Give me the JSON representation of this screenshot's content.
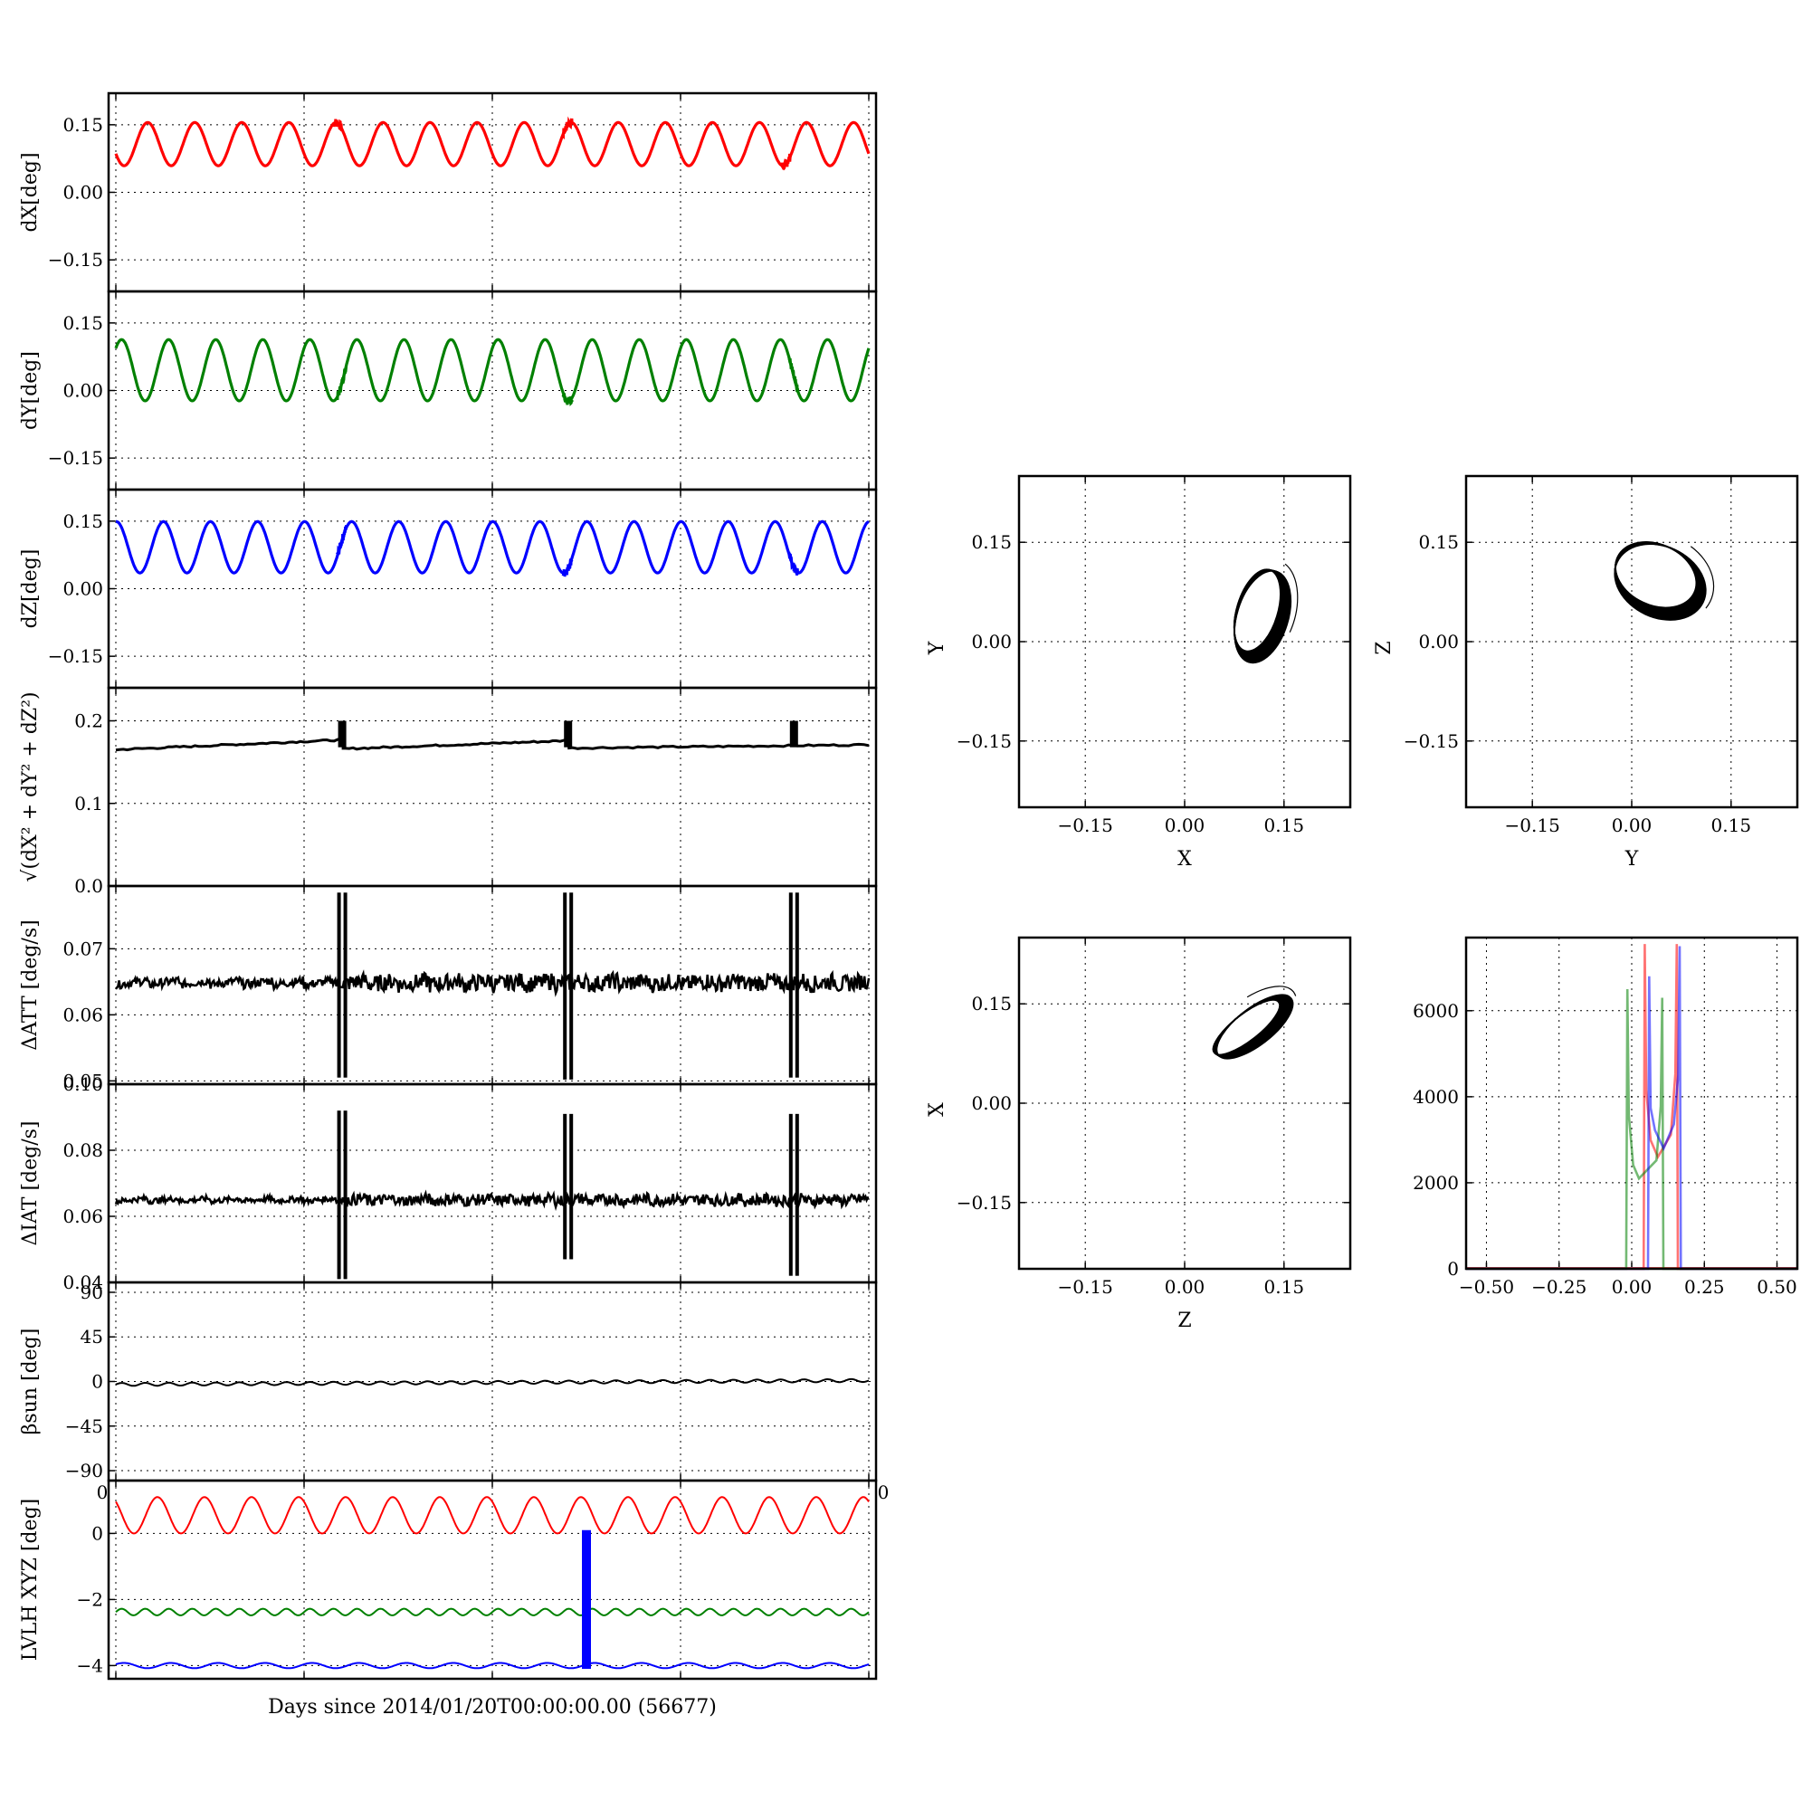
{
  "xlabel": "Days since 2014/01/20T00:00:00.00 (56677)",
  "colors": {
    "x": "#ff0000",
    "y": "#008000",
    "z": "#0000ff",
    "k": "#000000"
  },
  "left_tick_stub_left": "0",
  "left_tick_stub_right": "0",
  "chart_data": [
    {
      "id": "dX",
      "type": "line",
      "ylabel": "dX[deg]",
      "ylim": [
        -0.22,
        0.22
      ],
      "yticks": [
        0.15,
        0.0,
        -0.15
      ],
      "ytick_labels": [
        "0.15",
        "0.00",
        "−0.15"
      ],
      "series": [
        {
          "color": "#ff0000",
          "mean": 0.107,
          "amplitude": 0.048,
          "cycles": 16,
          "phase": 3.6,
          "disturbances": [
            0.295,
            0.6,
            0.89
          ]
        }
      ]
    },
    {
      "id": "dY",
      "type": "line",
      "ylabel": "dY[deg]",
      "ylim": [
        -0.22,
        0.22
      ],
      "yticks": [
        0.15,
        0.0,
        -0.15
      ],
      "ytick_labels": [
        "0.15",
        "0.00",
        "−0.15"
      ],
      "series": [
        {
          "color": "#008000",
          "mean": 0.045,
          "amplitude": 0.068,
          "cycles": 16,
          "phase": 0.8,
          "disturbances": [
            0.3,
            0.6,
            0.9
          ]
        }
      ]
    },
    {
      "id": "dZ",
      "type": "line",
      "ylabel": "dZ[deg]",
      "ylim": [
        -0.22,
        0.22
      ],
      "yticks": [
        0.15,
        0.0,
        -0.15
      ],
      "ytick_labels": [
        "0.15",
        "0.00",
        "−0.15"
      ],
      "series": [
        {
          "color": "#0000ff",
          "mean": 0.092,
          "amplitude": 0.057,
          "cycles": 16,
          "phase": 1.5,
          "disturbances": [
            0.3,
            0.6,
            0.9
          ]
        }
      ]
    },
    {
      "id": "norm",
      "type": "line",
      "ylabel": "√(dX² + dY² + dZ²)",
      "ylim": [
        0.0,
        0.24
      ],
      "yticks": [
        0.2,
        0.1,
        0.0
      ],
      "ytick_labels": [
        "0.2",
        "0.1",
        "0.0"
      ],
      "segments": [
        {
          "x0": 0.0,
          "x1": 0.3,
          "y0": 0.165,
          "y1": 0.177
        },
        {
          "x0": 0.3,
          "x1": 0.6,
          "y0": 0.166,
          "y1": 0.176
        },
        {
          "x0": 0.6,
          "x1": 1.0,
          "y0": 0.167,
          "y1": 0.171
        }
      ],
      "spikes": [
        {
          "x": 0.3,
          "y": 0.2
        },
        {
          "x": 0.6,
          "y": 0.2
        },
        {
          "x": 0.9,
          "y": 0.2
        }
      ]
    },
    {
      "id": "dATT",
      "type": "line",
      "ylabel": "ΔATT [deg/s]",
      "ylim": [
        0.0495,
        0.0795
      ],
      "yticks": [
        0.07,
        0.06,
        0.05
      ],
      "ytick_labels": [
        "0.07",
        "0.06",
        "0.05"
      ],
      "base": 0.0645,
      "noise": 0.0009,
      "spikes": [
        {
          "x": 0.3,
          "lo": 0.0505,
          "hi": 0.0785
        },
        {
          "x": 0.6,
          "lo": 0.0502,
          "hi": 0.0785
        },
        {
          "x": 0.9,
          "lo": 0.0505,
          "hi": 0.0785
        }
      ]
    },
    {
      "id": "dIAT",
      "type": "line",
      "ylabel": "ΔIAT [deg/s]",
      "ylim": [
        0.04,
        0.1
      ],
      "yticks": [
        0.1,
        0.08,
        0.06,
        0.04
      ],
      "ytick_labels": [
        "0.10",
        "0.08",
        "0.06",
        "0.04"
      ],
      "base": 0.0645,
      "noise": 0.0012,
      "spikes": [
        {
          "x": 0.3,
          "lo": 0.041,
          "hi": 0.092
        },
        {
          "x": 0.6,
          "lo": 0.047,
          "hi": 0.091
        },
        {
          "x": 0.9,
          "lo": 0.042,
          "hi": 0.091
        }
      ]
    },
    {
      "id": "beta",
      "type": "line",
      "ylabel": "βsun [deg]",
      "ylim": [
        -100,
        100
      ],
      "yticks": [
        90,
        45,
        0,
        -45,
        -90
      ],
      "ytick_labels": [
        "90",
        "45",
        "0",
        "−45",
        "−90"
      ],
      "series": [
        {
          "color": "#000000",
          "mean": -3,
          "amplitude": 1.5,
          "cycles": 32,
          "phase": 0,
          "trend": 4
        }
      ]
    },
    {
      "id": "lvlh",
      "type": "line",
      "ylabel": "LVLH XYZ [deg]",
      "ylim": [
        -4.4,
        1.6
      ],
      "yticks": [
        0,
        -2,
        -4
      ],
      "ytick_labels": [
        "0",
        "−2",
        "−4"
      ],
      "series": [
        {
          "color": "#ff0000",
          "mean": 0.55,
          "amplitude": 0.55,
          "cycles": 16,
          "phase": 2.3
        },
        {
          "color": "#008000",
          "mean": -2.38,
          "amplitude": 0.1,
          "cycles": 32,
          "phase": 0
        },
        {
          "color": "#0000ff",
          "mean": -4.0,
          "amplitude": 0.08,
          "cycles": 16,
          "phase": 0.5
        }
      ],
      "bar": {
        "x": 0.625,
        "lo": -4.1,
        "hi": 0.1,
        "color": "#0000ff"
      }
    },
    {
      "id": "XY",
      "type": "scatter",
      "xlabel": "X",
      "ylabel": "Y",
      "xlim": [
        -0.25,
        0.25
      ],
      "ylim": [
        -0.25,
        0.25
      ],
      "ticks": [
        -0.15,
        0.0,
        0.15
      ],
      "tick_labels": [
        "−0.15",
        "0.00",
        "0.15"
      ],
      "ellipse": {
        "cx": 0.114,
        "cy": 0.042,
        "rx": 0.035,
        "ry": 0.068,
        "rot": 17
      }
    },
    {
      "id": "YZ",
      "type": "scatter",
      "xlabel": "Y",
      "ylabel": "Z",
      "xlim": [
        -0.25,
        0.25
      ],
      "ylim": [
        -0.25,
        0.25
      ],
      "ticks": [
        -0.15,
        0.0,
        0.15
      ],
      "tick_labels": [
        "−0.15",
        "0.00",
        "0.15"
      ],
      "ellipse": {
        "cx": 0.04,
        "cy": 0.095,
        "rx": 0.068,
        "ry": 0.05,
        "rot": 25
      }
    },
    {
      "id": "ZX",
      "type": "scatter",
      "xlabel": "Z",
      "ylabel": "X",
      "xlim": [
        -0.25,
        0.25
      ],
      "ylim": [
        -0.25,
        0.25
      ],
      "ticks": [
        -0.15,
        0.0,
        0.15
      ],
      "tick_labels": [
        "−0.15",
        "0.00",
        "0.15"
      ],
      "ellipse": {
        "cx": 0.1,
        "cy": 0.115,
        "rx": 0.066,
        "ry": 0.024,
        "rot": -38
      }
    },
    {
      "id": "hist",
      "type": "line",
      "xlim": [
        -0.57,
        0.57
      ],
      "ylim": [
        0,
        7700
      ],
      "xticks": [
        -0.5,
        -0.25,
        0.0,
        0.25,
        0.5
      ],
      "xtick_labels": [
        "−0.50",
        "−0.25",
        "0.00",
        "0.25",
        "0.50"
      ],
      "yticks": [
        0,
        2000,
        4000,
        6000
      ],
      "ytick_labels": [
        "0",
        "2000",
        "4000",
        "6000"
      ],
      "series": [
        {
          "color": "#ff0000",
          "x0": 0.045,
          "x1": 0.155,
          "peak": 7550,
          "min": 2600,
          "mid": 0.09
        },
        {
          "color": "#008000",
          "x0": -0.015,
          "x1": 0.105,
          "peak": 6500,
          "peak2": 6300,
          "min": 2100,
          "mid": 0.025
        },
        {
          "color": "#0000ff",
          "x0": 0.06,
          "x1": 0.165,
          "peak": 6800,
          "peak2": 7500,
          "min": 2800,
          "mid": 0.11
        }
      ]
    }
  ]
}
